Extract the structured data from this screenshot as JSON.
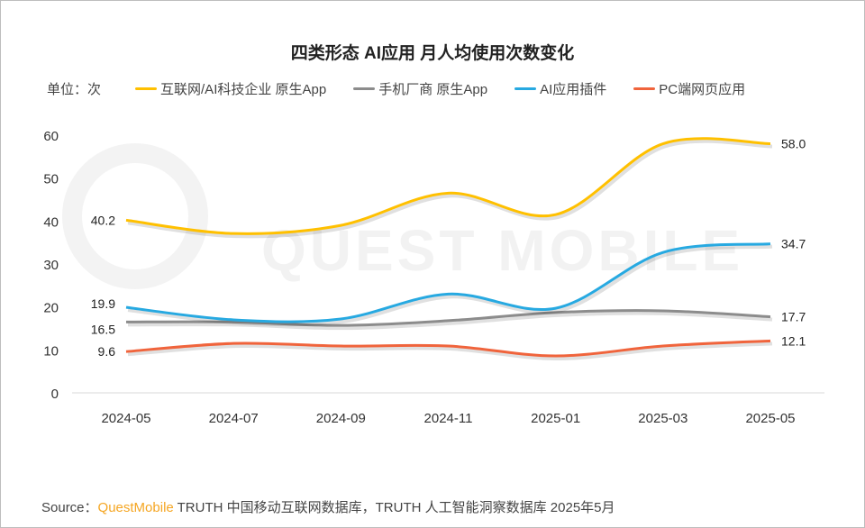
{
  "chart_data": {
    "type": "line",
    "title": "四类形态 AI应用 月人均使用次数变化",
    "unit_label": "单位：次",
    "categories": [
      "2024-05",
      "2024-07",
      "2024-09",
      "2024-11",
      "2025-01",
      "2025-03",
      "2025-05"
    ],
    "ylim": [
      0,
      60
    ],
    "yticks": [
      0,
      10,
      20,
      30,
      40,
      50,
      60
    ],
    "grid": false,
    "legend_position": "top",
    "series": [
      {
        "name": "互联网/AI科技企业 原生App",
        "color": "#ffc000",
        "values": [
          40.2,
          37.1,
          39.0,
          46.5,
          41.5,
          58.0,
          58.0
        ],
        "labels": [
          "40.2",
          "58.0"
        ]
      },
      {
        "name": "手机厂商 原生App",
        "color": "#8c8c8c",
        "values": [
          16.5,
          16.5,
          15.7,
          16.8,
          18.7,
          19.1,
          17.7
        ],
        "labels": [
          "16.5",
          "17.7"
        ]
      },
      {
        "name": "AI应用插件",
        "color": "#27a9e1",
        "values": [
          19.9,
          17.0,
          17.2,
          23.0,
          19.7,
          32.7,
          34.7
        ],
        "labels": [
          "19.9",
          "34.7"
        ]
      },
      {
        "name": "PC端网页应用",
        "color": "#f0643c",
        "values": [
          9.6,
          11.5,
          10.9,
          10.9,
          8.6,
          10.9,
          12.1
        ],
        "labels": [
          "9.6",
          "12.1"
        ]
      }
    ]
  },
  "watermark": "QUEST MOBILE",
  "source": {
    "prefix": "Source：",
    "brand": "QuestMobile",
    "text": " TRUTH 中国移动互联网数据库，TRUTH 人工智能洞察数据库 2025年5月"
  }
}
